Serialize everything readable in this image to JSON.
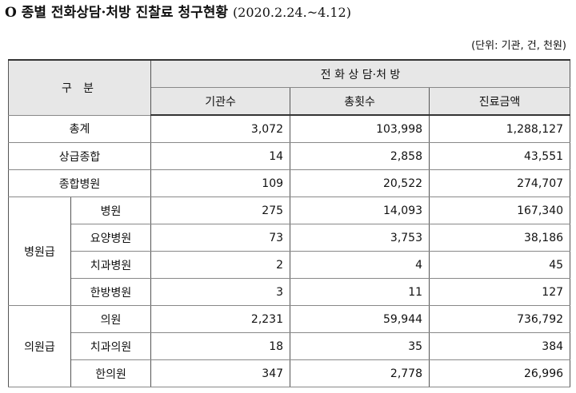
{
  "title": {
    "marker": "O",
    "text": "종별 전화상담·처방 진찰료 청구현황",
    "period": "(2020.2.24.~4.12)"
  },
  "unit_note": "(단위: 기관, 건, 천원)",
  "table": {
    "header_group": "구 분",
    "header_top": "전 화 상 담·처 방",
    "columns": [
      "기관수",
      "총횟수",
      "진료금액"
    ],
    "top_rows": [
      {
        "label": "총계",
        "values": [
          "3,072",
          "103,998",
          "1,288,127"
        ]
      },
      {
        "label": "상급종합",
        "values": [
          "14",
          "2,858",
          "43,551"
        ]
      },
      {
        "label": "종합병원",
        "values": [
          "109",
          "20,522",
          "274,707"
        ]
      }
    ],
    "groups": [
      {
        "label": "병원급",
        "rows": [
          {
            "label": "병원",
            "values": [
              "275",
              "14,093",
              "167,340"
            ]
          },
          {
            "label": "요양병원",
            "values": [
              "73",
              "3,753",
              "38,186"
            ]
          },
          {
            "label": "치과병원",
            "values": [
              "2",
              "4",
              "45"
            ]
          },
          {
            "label": "한방병원",
            "values": [
              "3",
              "11",
              "127"
            ]
          }
        ]
      },
      {
        "label": "의원급",
        "rows": [
          {
            "label": "의원",
            "values": [
              "2,231",
              "59,944",
              "736,792"
            ]
          },
          {
            "label": "치과의원",
            "values": [
              "18",
              "35",
              "384"
            ]
          },
          {
            "label": "한의원",
            "values": [
              "347",
              "2,778",
              "26,996"
            ]
          }
        ]
      }
    ]
  }
}
